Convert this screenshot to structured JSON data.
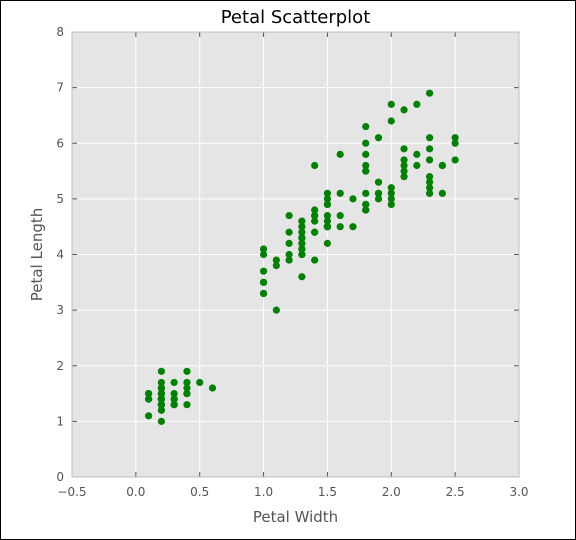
{
  "chart_data": {
    "type": "scatter",
    "title": "Petal Scatterplot",
    "xlabel": "Petal Width",
    "ylabel": "Petal Length",
    "xlim": [
      -0.5,
      3.0
    ],
    "ylim": [
      0,
      8
    ],
    "xticks": [
      "−0.5",
      "0.0",
      "0.5",
      "1.0",
      "1.5",
      "2.0",
      "2.5",
      "3.0"
    ],
    "yticks": [
      "0",
      "1",
      "2",
      "3",
      "4",
      "5",
      "6",
      "7",
      "8"
    ],
    "grid": true,
    "colors": {
      "background": "#e5e5e5",
      "grid": "#ffffff",
      "marker": "#008000"
    },
    "points": [
      [
        0.2,
        1.4
      ],
      [
        0.2,
        1.4
      ],
      [
        0.2,
        1.3
      ],
      [
        0.2,
        1.5
      ],
      [
        0.2,
        1.4
      ],
      [
        0.4,
        1.7
      ],
      [
        0.3,
        1.4
      ],
      [
        0.2,
        1.5
      ],
      [
        0.2,
        1.4
      ],
      [
        0.1,
        1.5
      ],
      [
        0.2,
        1.5
      ],
      [
        0.2,
        1.6
      ],
      [
        0.1,
        1.4
      ],
      [
        0.1,
        1.1
      ],
      [
        0.2,
        1.2
      ],
      [
        0.4,
        1.5
      ],
      [
        0.4,
        1.3
      ],
      [
        0.3,
        1.4
      ],
      [
        0.3,
        1.7
      ],
      [
        0.3,
        1.5
      ],
      [
        0.2,
        1.7
      ],
      [
        0.4,
        1.5
      ],
      [
        0.2,
        1.0
      ],
      [
        0.5,
        1.7
      ],
      [
        0.2,
        1.9
      ],
      [
        0.2,
        1.6
      ],
      [
        0.4,
        1.6
      ],
      [
        0.2,
        1.5
      ],
      [
        0.2,
        1.4
      ],
      [
        0.2,
        1.6
      ],
      [
        0.2,
        1.6
      ],
      [
        0.4,
        1.5
      ],
      [
        0.1,
        1.5
      ],
      [
        0.2,
        1.4
      ],
      [
        0.2,
        1.5
      ],
      [
        0.2,
        1.2
      ],
      [
        0.2,
        1.3
      ],
      [
        0.1,
        1.4
      ],
      [
        0.2,
        1.3
      ],
      [
        0.2,
        1.5
      ],
      [
        0.3,
        1.3
      ],
      [
        0.3,
        1.3
      ],
      [
        0.2,
        1.3
      ],
      [
        0.6,
        1.6
      ],
      [
        0.4,
        1.9
      ],
      [
        0.3,
        1.4
      ],
      [
        0.2,
        1.6
      ],
      [
        0.2,
        1.4
      ],
      [
        0.2,
        1.5
      ],
      [
        0.2,
        1.4
      ],
      [
        1.4,
        4.7
      ],
      [
        1.5,
        4.5
      ],
      [
        1.5,
        4.9
      ],
      [
        1.3,
        4.0
      ],
      [
        1.5,
        4.6
      ],
      [
        1.3,
        4.5
      ],
      [
        1.6,
        4.7
      ],
      [
        1.0,
        3.3
      ],
      [
        1.3,
        4.6
      ],
      [
        1.4,
        3.9
      ],
      [
        1.0,
        3.5
      ],
      [
        1.5,
        4.2
      ],
      [
        1.0,
        4.0
      ],
      [
        1.4,
        4.7
      ],
      [
        1.3,
        3.6
      ],
      [
        1.4,
        4.4
      ],
      [
        1.5,
        4.5
      ],
      [
        1.0,
        4.1
      ],
      [
        1.5,
        4.5
      ],
      [
        1.1,
        3.9
      ],
      [
        1.8,
        4.8
      ],
      [
        1.3,
        4.0
      ],
      [
        1.5,
        4.9
      ],
      [
        1.2,
        4.7
      ],
      [
        1.3,
        4.3
      ],
      [
        1.4,
        4.4
      ],
      [
        1.4,
        4.8
      ],
      [
        1.7,
        5.0
      ],
      [
        1.5,
        4.5
      ],
      [
        1.0,
        3.5
      ],
      [
        1.1,
        3.8
      ],
      [
        1.0,
        3.7
      ],
      [
        1.2,
        3.9
      ],
      [
        1.6,
        5.1
      ],
      [
        1.5,
        4.5
      ],
      [
        1.6,
        4.5
      ],
      [
        1.5,
        4.7
      ],
      [
        1.3,
        4.4
      ],
      [
        1.3,
        4.1
      ],
      [
        1.3,
        4.0
      ],
      [
        1.2,
        4.4
      ],
      [
        1.4,
        4.6
      ],
      [
        1.2,
        4.0
      ],
      [
        1.0,
        3.3
      ],
      [
        1.3,
        4.2
      ],
      [
        1.2,
        4.2
      ],
      [
        1.3,
        4.2
      ],
      [
        1.3,
        4.3
      ],
      [
        1.1,
        3.0
      ],
      [
        1.3,
        4.1
      ],
      [
        2.5,
        6.0
      ],
      [
        1.9,
        5.1
      ],
      [
        2.1,
        5.9
      ],
      [
        1.8,
        5.6
      ],
      [
        2.2,
        5.8
      ],
      [
        2.1,
        6.6
      ],
      [
        1.7,
        4.5
      ],
      [
        1.8,
        6.3
      ],
      [
        1.8,
        5.8
      ],
      [
        2.5,
        6.1
      ],
      [
        2.0,
        5.1
      ],
      [
        1.9,
        5.3
      ],
      [
        2.1,
        5.5
      ],
      [
        2.0,
        5.0
      ],
      [
        2.4,
        5.1
      ],
      [
        2.3,
        5.3
      ],
      [
        1.8,
        5.5
      ],
      [
        2.2,
        6.7
      ],
      [
        2.3,
        6.9
      ],
      [
        1.5,
        5.0
      ],
      [
        2.3,
        5.7
      ],
      [
        2.0,
        4.9
      ],
      [
        2.0,
        6.7
      ],
      [
        1.8,
        4.9
      ],
      [
        2.1,
        5.7
      ],
      [
        1.8,
        6.0
      ],
      [
        1.8,
        4.8
      ],
      [
        1.8,
        4.9
      ],
      [
        2.1,
        5.6
      ],
      [
        1.6,
        5.8
      ],
      [
        1.9,
        6.1
      ],
      [
        2.0,
        6.4
      ],
      [
        2.2,
        5.6
      ],
      [
        1.5,
        5.1
      ],
      [
        1.4,
        5.6
      ],
      [
        2.3,
        6.1
      ],
      [
        2.4,
        5.6
      ],
      [
        1.8,
        5.5
      ],
      [
        1.8,
        4.8
      ],
      [
        2.1,
        5.4
      ],
      [
        2.4,
        5.6
      ],
      [
        2.3,
        5.1
      ],
      [
        1.9,
        5.1
      ],
      [
        2.3,
        5.9
      ],
      [
        2.5,
        5.7
      ],
      [
        2.3,
        5.2
      ],
      [
        1.9,
        5.0
      ],
      [
        2.0,
        5.2
      ],
      [
        2.3,
        5.4
      ],
      [
        1.8,
        5.1
      ]
    ]
  }
}
